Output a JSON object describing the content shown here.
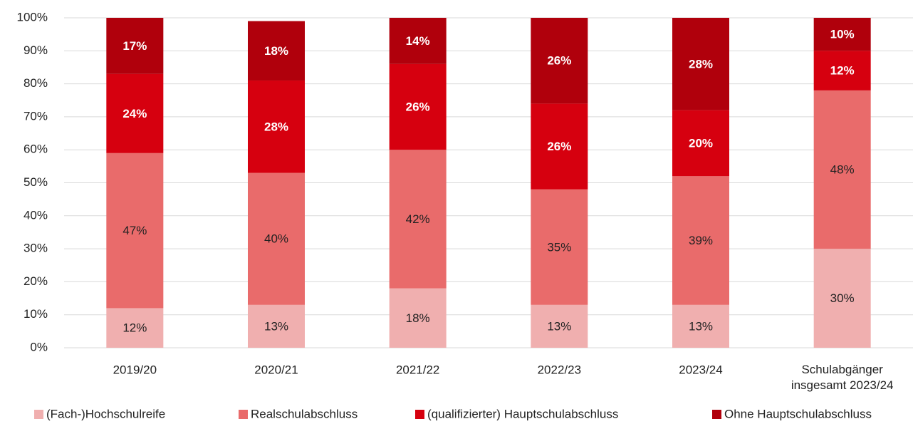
{
  "chart_data": {
    "type": "stacked_bar",
    "categories": [
      "2019/20",
      "2020/21",
      "2021/22",
      "2022/23",
      "2023/24",
      "Schulabgänger\ninsgesamt 2023/24"
    ],
    "series": [
      {
        "name": "(Fach-)Hochschulreife",
        "color": "#f0afaf",
        "label_color": "#222222",
        "label_bold": false,
        "values": [
          12,
          13,
          18,
          13,
          13,
          30
        ],
        "value_labels": [
          "12%",
          "13%",
          "18%",
          "13%",
          "13%",
          "30%"
        ]
      },
      {
        "name": "Realschulabschluss",
        "color": "#e96b6b",
        "label_color": "#222222",
        "label_bold": false,
        "values": [
          47,
          40,
          42,
          35,
          39,
          48
        ],
        "value_labels": [
          "47%",
          "40%",
          "42%",
          "35%",
          "39%",
          "48%"
        ]
      },
      {
        "name": "(qualifizierter) Hauptschulabschluss",
        "color": "#d6000f",
        "label_color": "#ffffff",
        "label_bold": true,
        "values": [
          24,
          28,
          26,
          26,
          20,
          12
        ],
        "value_labels": [
          "24%",
          "28%",
          "26%",
          "26%",
          "20%",
          "12%"
        ]
      },
      {
        "name": "Ohne Hauptschulabschluss",
        "color": "#b0000c",
        "label_color": "#ffffff",
        "label_bold": true,
        "values": [
          17,
          18,
          14,
          26,
          28,
          10
        ],
        "value_labels": [
          "17%",
          "18%",
          "14%",
          "26%",
          "28%",
          "10%"
        ]
      }
    ],
    "ylim": [
      0,
      100
    ],
    "yticks": [
      {
        "value": 0,
        "label": "0%"
      },
      {
        "value": 10,
        "label": "10%"
      },
      {
        "value": 20,
        "label": "20%"
      },
      {
        "value": 30,
        "label": "30%"
      },
      {
        "value": 40,
        "label": "40%"
      },
      {
        "value": 50,
        "label": "50%"
      },
      {
        "value": 60,
        "label": "60%"
      },
      {
        "value": 70,
        "label": "70%"
      },
      {
        "value": 80,
        "label": "80%"
      },
      {
        "value": 90,
        "label": "90%"
      },
      {
        "value": 100,
        "label": "100%"
      }
    ],
    "grid": true,
    "legend": "bottom"
  }
}
